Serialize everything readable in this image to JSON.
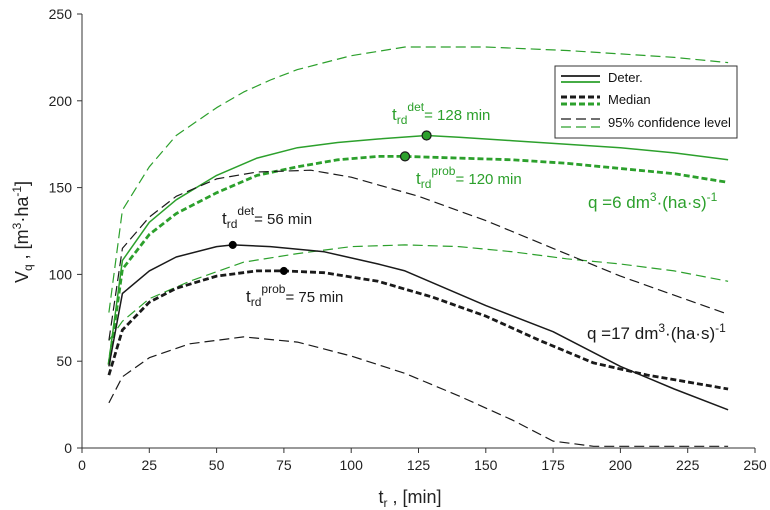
{
  "chart_data": {
    "type": "line",
    "xlabel": {
      "base": "t",
      "sub": "r",
      "rest": " , [min]"
    },
    "ylabel": {
      "base": "V",
      "sub": "q",
      "rest": " , [m",
      "sup1": "3",
      "mid": "·ha",
      "sup2": "-1",
      "end": "]"
    },
    "xlim": [
      0,
      250
    ],
    "ylim": [
      0,
      250
    ],
    "xticks": [
      "0",
      "25",
      "50",
      "75",
      "100",
      "125",
      "150",
      "175",
      "200",
      "225",
      "250"
    ],
    "yticks": [
      "0",
      "50",
      "100",
      "150",
      "200",
      "250"
    ],
    "grid": false,
    "legend_position": "top-right",
    "legend": [
      "Deter.",
      "Median",
      "95% confidence level"
    ],
    "colors": {
      "q6": "#2ca02c",
      "q17": "#1a1a1a",
      "marker_q6": "#2ca02c",
      "marker_q17": "#000000"
    },
    "series": [
      {
        "name": "Deter.",
        "group": "q6",
        "style": "solid",
        "x": [
          10,
          15,
          25,
          35,
          50,
          65,
          80,
          95,
          110,
          128,
          140,
          160,
          180,
          200,
          220,
          240
        ],
        "y": [
          50,
          108,
          130,
          143,
          157,
          167,
          173,
          176,
          178,
          180,
          179,
          177,
          175,
          173,
          170,
          166
        ]
      },
      {
        "name": "Median",
        "group": "q6",
        "style": "bold-dash",
        "x": [
          10,
          15,
          25,
          35,
          50,
          65,
          80,
          95,
          110,
          120,
          140,
          160,
          180,
          200,
          220,
          240
        ],
        "y": [
          48,
          103,
          123,
          135,
          147,
          157,
          162,
          166,
          168,
          168,
          167,
          166,
          164,
          161,
          158,
          153
        ]
      },
      {
        "name": "95% confidence level",
        "group": "q6",
        "style": "dash",
        "bound": "upper",
        "x": [
          10,
          15,
          25,
          35,
          50,
          60,
          70,
          80,
          100,
          120,
          150,
          180,
          200,
          220,
          240
        ],
        "y": [
          78,
          137,
          162,
          180,
          196,
          205,
          212,
          218,
          226,
          231,
          231,
          229,
          227,
          225,
          222
        ]
      },
      {
        "name": "95% confidence level",
        "group": "q6",
        "style": "dash",
        "bound": "lower",
        "x": [
          10,
          15,
          25,
          40,
          60,
          80,
          100,
          120,
          140,
          160,
          180,
          200,
          220,
          240
        ],
        "y": [
          62,
          73,
          86,
          96,
          107,
          112,
          116,
          117,
          116,
          113,
          109,
          106,
          102,
          96
        ]
      },
      {
        "name": "Deter.",
        "group": "q17",
        "style": "solid",
        "x": [
          10,
          15,
          25,
          35,
          50,
          56,
          70,
          90,
          110,
          120,
          150,
          175,
          200,
          220,
          240
        ],
        "y": [
          47,
          89,
          102,
          110,
          116,
          117,
          116,
          113,
          106,
          102,
          82,
          67,
          47,
          34,
          22
        ]
      },
      {
        "name": "Median",
        "group": "q17",
        "style": "bold-dash",
        "x": [
          10,
          15,
          25,
          35,
          50,
          65,
          75,
          90,
          110,
          130,
          150,
          170,
          190,
          210,
          225,
          240
        ],
        "y": [
          42,
          68,
          84,
          92,
          99,
          102,
          102,
          101,
          96,
          87,
          76,
          62,
          49,
          42,
          38,
          34
        ]
      },
      {
        "name": "95% confidence level",
        "group": "q17",
        "style": "dash",
        "bound": "upper",
        "x": [
          10,
          15,
          25,
          35,
          50,
          65,
          85,
          100,
          125,
          150,
          175,
          200,
          220,
          240
        ],
        "y": [
          62,
          115,
          133,
          145,
          155,
          159,
          160,
          156,
          145,
          131,
          115,
          99,
          88,
          77
        ]
      },
      {
        "name": "95% confidence level",
        "group": "q17",
        "style": "dash",
        "bound": "lower",
        "x": [
          10,
          15,
          25,
          40,
          60,
          80,
          100,
          120,
          140,
          160,
          175,
          190,
          210,
          225,
          240
        ],
        "y": [
          26,
          41,
          52,
          60,
          64,
          61,
          53,
          43,
          30,
          16,
          4,
          1,
          1,
          1,
          1
        ]
      }
    ],
    "markers": [
      {
        "group": "q6",
        "x": 128,
        "y": 180
      },
      {
        "group": "q6",
        "x": 120,
        "y": 168
      },
      {
        "group": "q17",
        "x": 56,
        "y": 117
      },
      {
        "group": "q17",
        "x": 75,
        "y": 102
      }
    ],
    "annotations": {
      "q6_det": {
        "base": "t",
        "sub": "rd",
        "sup": "det",
        "rest": "= 128 min"
      },
      "q6_prob": {
        "base": "t",
        "sub": "rd",
        "sup": "prob",
        "rest": "= 120 min"
      },
      "q17_det": {
        "base": "t",
        "sub": "rd",
        "sup": "det",
        "rest": "= 56 min"
      },
      "q17_prob": {
        "base": "t",
        "sub": "rd",
        "sup": "prob",
        "rest": "= 75 min"
      },
      "q6_label": {
        "pre": "q =6 dm",
        "sup1": "3",
        "mid": "·(ha·s)",
        "sup2": "-1"
      },
      "q17_label": {
        "pre": "q =17 dm",
        "sup1": "3",
        "mid": "·(ha·s)",
        "sup2": "-1"
      }
    }
  }
}
